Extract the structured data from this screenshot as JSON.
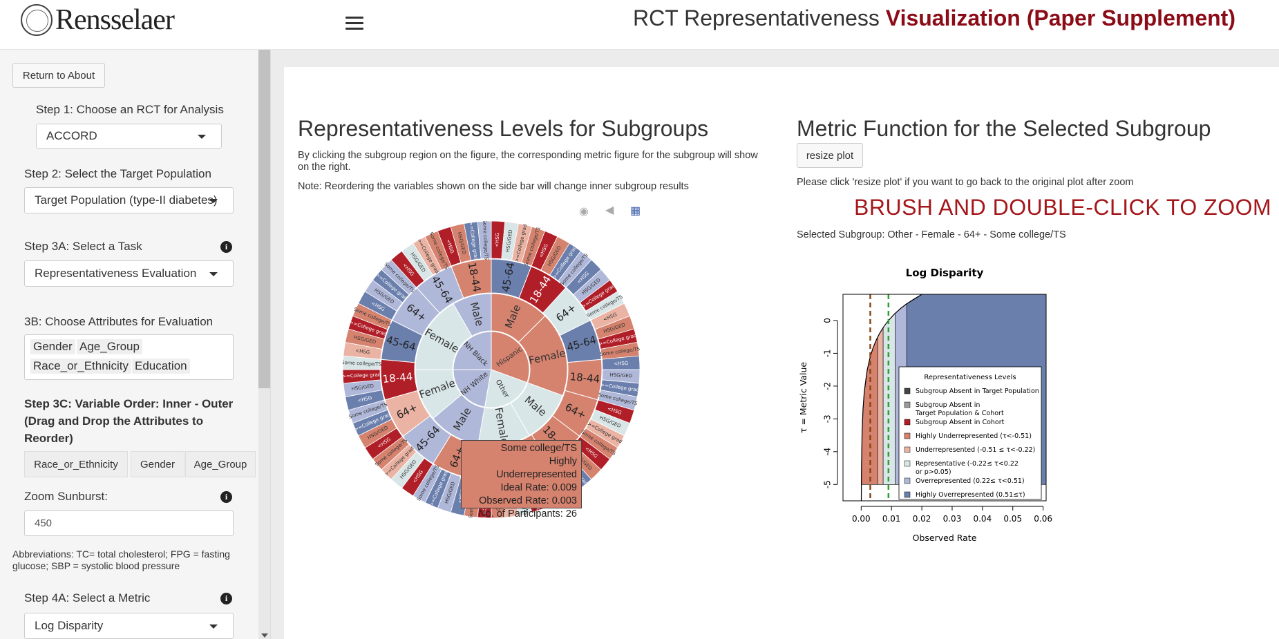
{
  "header": {
    "logo_text": "Rensselaer",
    "title_plain": "RCT Representativeness ",
    "title_accent": "Visualization (Paper Supplement)"
  },
  "sidebar": {
    "return_button": "Return to About",
    "step1_label": "Step 1: Choose an RCT for Analysis",
    "step1_value": "ACCORD",
    "step2_label": "Step 2: Select the Target Population",
    "step2_value": "Target Population (type-II diabetes)",
    "step3a_label": "Step 3A: Select a Task",
    "step3a_value": "Representativeness Evaluation",
    "step3b_label": "3B: Choose Attributes for Evaluation",
    "attributes": [
      "Gender",
      "Age_Group",
      "Race_or_Ethnicity",
      "Education"
    ],
    "step3c_label_line1": "Step 3C: Variable Order: Inner - Outer",
    "step3c_label_line2": "(Drag and Drop the Attributes to",
    "step3c_label_line3": "Reorder)",
    "order": [
      "Race_or_Ethnicity",
      "Gender",
      "Age_Group"
    ],
    "zoom_label": "Zoom Sunburst:",
    "zoom_value": "450",
    "abbrev_line1": "Abbreviations: TC= total cholesterol; FPG = fasting",
    "abbrev_line2": "glucose; SBP = systolic blood pressure",
    "step4a_label": "Step 4A: Select a Metric",
    "step4a_value": "Log Disparity"
  },
  "left_panel": {
    "heading": "Representativeness Levels for Subgroups",
    "desc_line1": "By clicking the subgroup region on the figure, the corresponding metric figure for the subgroup will show",
    "desc_line2": "on the right.",
    "note": "Note: Reordering the variables shown on the side bar will change inner subgroup results",
    "tooltip": {
      "line1": "Some college/TS",
      "line2": "Highly Underrepresented",
      "line3": "Ideal Rate: 0.009",
      "line4": "Observed Rate: 0.003",
      "line5": "No. of Participants: 26"
    },
    "center_labels": [
      "NH Black",
      "Hispanic",
      "Other",
      "NH White"
    ],
    "gender_labels": [
      "Female",
      "Male",
      "Female",
      "Male",
      "Male",
      "Female",
      "Female",
      "Male"
    ],
    "age_labels": [
      "45-64",
      "18-44",
      "64+",
      "45-64",
      "18-44",
      "64+",
      "18-44",
      "45-64",
      "18-44",
      "64+",
      "45-64",
      "64+",
      "18-44",
      "45-64",
      "64+",
      "45-64",
      "18-44"
    ],
    "outer_labels": [
      "<HSG",
      "HSG/GED",
      ">=College grad",
      "Some college/TS"
    ]
  },
  "right_panel": {
    "heading": "Metric Function for the Selected Subgroup",
    "resize_button": "resize plot",
    "resize_note": "Please click 'resize plot' if you want to go back to the original plot after zoom",
    "brush_note": "BRUSH AND DOUBLE-CLICK TO ZOOM",
    "selected": "Selected Subgroup: Other - Female - 64+ - Some college/TS"
  },
  "chart_data": {
    "type": "area",
    "title": "Log Disparity",
    "xlabel": "Observed Rate",
    "ylabel": "τ = Metric Value",
    "xlim": [
      -0.006,
      0.061
    ],
    "ylim": [
      -5.5,
      0.8
    ],
    "xticks": [
      "0.00",
      "0.01",
      "0.02",
      "0.03",
      "0.04",
      "0.05",
      "0.06"
    ],
    "yticks": [
      "0",
      "-1",
      "-2",
      "-3",
      "-4",
      "-5"
    ],
    "curve": {
      "x": [
        3e-05,
        0.0001,
        0.0003,
        0.0006,
        0.001,
        0.002,
        0.003,
        0.004,
        0.005,
        0.006,
        0.007,
        0.008,
        0.009,
        0.011,
        0.013,
        0.015,
        0.02
      ],
      "ideal_rate": 0.009
    },
    "lines": [
      {
        "name": "observed",
        "x": 0.003,
        "color": "#8b4513"
      },
      {
        "name": "ideal",
        "x": 0.009,
        "color": "#2ca02c"
      }
    ],
    "bands": [
      {
        "from": -5,
        "to": -0.51,
        "color": "#d5826e"
      },
      {
        "from": -0.51,
        "to": -0.22,
        "color": "#ebb3a3"
      },
      {
        "from": -0.22,
        "to": 0.22,
        "color": "#d9e6e8"
      },
      {
        "from": 0.22,
        "to": 0.51,
        "color": "#b0b8d9"
      },
      {
        "from": 0.51,
        "to": 5,
        "color": "#6b7fad"
      }
    ],
    "legend": {
      "title": "Representativeness Levels",
      "position": "bottom-right",
      "items": [
        {
          "label": "Subgroup Absent in Target Population",
          "color": "#444444"
        },
        {
          "label": "Subgroup Absent in",
          "label2": "Target Population & Cohort",
          "color": "#999999"
        },
        {
          "label": "Subgroup Absent in Cohort",
          "color": "#b01e28"
        },
        {
          "label": "Highly Underrepresented (τ<-0.51)",
          "color": "#d5826e"
        },
        {
          "label": "Underrepresented (-0.51 ≤ τ<-0.22)",
          "color": "#ebb3a3"
        },
        {
          "label": "Representative (-0.22≤ τ<0.22",
          "label2": "or p>0.05)",
          "color": "#d9e6e8"
        },
        {
          "label": "Overrepresented (0.22≤ τ<0.51)",
          "color": "#b0b8d9"
        },
        {
          "label": "Highly Overrepresented (0.51≤τ)",
          "color": "#6b7fad"
        }
      ]
    }
  }
}
